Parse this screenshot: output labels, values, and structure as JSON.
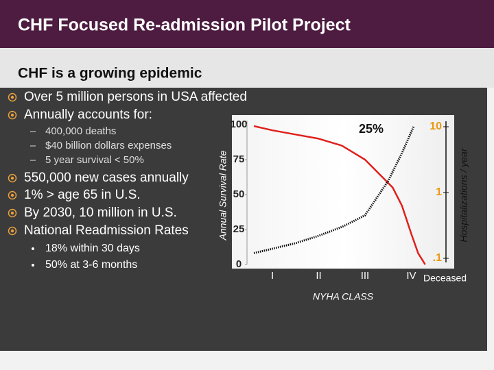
{
  "slide": {
    "title": "CHF Focused Re-admission Pilot  Project",
    "subtitle": "CHF is a growing epidemic",
    "items": [
      {
        "level": 1,
        "text": "Over 5 million persons in USA affected"
      },
      {
        "level": 1,
        "text": "Annually accounts for:"
      },
      {
        "level": 2,
        "text": "400,000 deaths"
      },
      {
        "level": 2,
        "text": "$40 billion dollars expenses"
      },
      {
        "level": 2,
        "text": "5 year survival < 50%"
      },
      {
        "level": 1,
        "text": "550,000 new cases annually"
      },
      {
        "level": 1,
        "text": "1% > age 65 in U.S."
      },
      {
        "level": 1,
        "text": "By 2030, 10 million in U.S."
      },
      {
        "level": 1,
        "text": "National Readmission Rates"
      },
      {
        "level": 3,
        "text": "18% within 30 days"
      },
      {
        "level": 3,
        "text": "50% at 3-6 months"
      }
    ]
  },
  "chart_data": {
    "type": "line",
    "xlabel": "NYHA CLASS",
    "ylabel": "Annual Survival Rate",
    "y2label": "Hospitalizations / year",
    "xlim": [
      0.45,
      4.75
    ],
    "xticks": [
      {
        "value": 1,
        "label": "I"
      },
      {
        "value": 2,
        "label": "II"
      },
      {
        "value": 3,
        "label": "III"
      },
      {
        "value": 4,
        "label": "IV"
      }
    ],
    "ylim": [
      0,
      100
    ],
    "yticks": [
      0,
      25,
      50,
      75,
      100
    ],
    "y2lim": [
      0.1,
      10
    ],
    "y2log": true,
    "y2ticks": [
      {
        "value": 0.1,
        "label": ".1"
      },
      1,
      10
    ],
    "annotations": [
      "25%",
      "Deceased"
    ],
    "series": [
      {
        "color": "#e0201c",
        "x": [
          0.6,
          1,
          1.5,
          2,
          2.5,
          3,
          3.3,
          3.6,
          3.8,
          4,
          4.15,
          4.3
        ],
        "values": [
          99,
          96,
          93,
          90,
          85,
          75,
          65,
          55,
          42,
          22,
          8,
          0
        ]
      },
      {
        "color": "#111111",
        "axis": "y2",
        "dotted": true,
        "x": [
          0.6,
          1,
          1.5,
          2,
          2.5,
          3,
          3.5,
          3.8,
          4.05
        ],
        "values": [
          0.12,
          0.14,
          0.17,
          0.22,
          0.3,
          0.45,
          1.5,
          4,
          10
        ]
      }
    ]
  }
}
